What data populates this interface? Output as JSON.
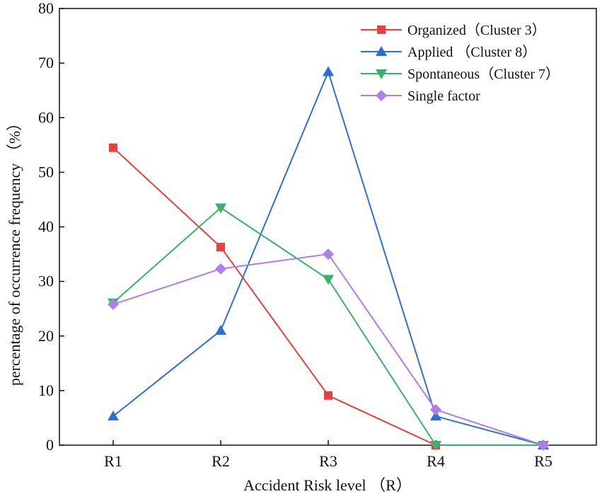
{
  "chart_data": {
    "type": "line",
    "title": "",
    "xlabel": "Accident Risk level （R）",
    "ylabel": "percentage of occurrence frequency （%）",
    "categories": [
      "R1",
      "R2",
      "R3",
      "R4",
      "R5"
    ],
    "ylim": [
      0,
      80
    ],
    "yticks": [
      0,
      10,
      20,
      30,
      40,
      50,
      60,
      70,
      80
    ],
    "grid": false,
    "legend_position": "top-right",
    "series": [
      {
        "name": "Organized（Cluster 3）",
        "color": "#e8413e",
        "marker": "square",
        "values": [
          54.5,
          36.3,
          9.1,
          0,
          0
        ]
      },
      {
        "name": "Applied （Cluster 8）",
        "color": "#2f6fd1",
        "marker": "triangle-up",
        "values": [
          5.3,
          21.0,
          68.4,
          5.3,
          0
        ]
      },
      {
        "name": "Spontaneous（Cluster 7）",
        "color": "#3ab26c",
        "marker": "triangle-down",
        "values": [
          26.1,
          43.5,
          30.4,
          0,
          0
        ]
      },
      {
        "name": "Single factor",
        "color": "#b07ee8",
        "marker": "diamond",
        "values": [
          25.8,
          32.3,
          35.0,
          6.5,
          0
        ]
      }
    ]
  }
}
